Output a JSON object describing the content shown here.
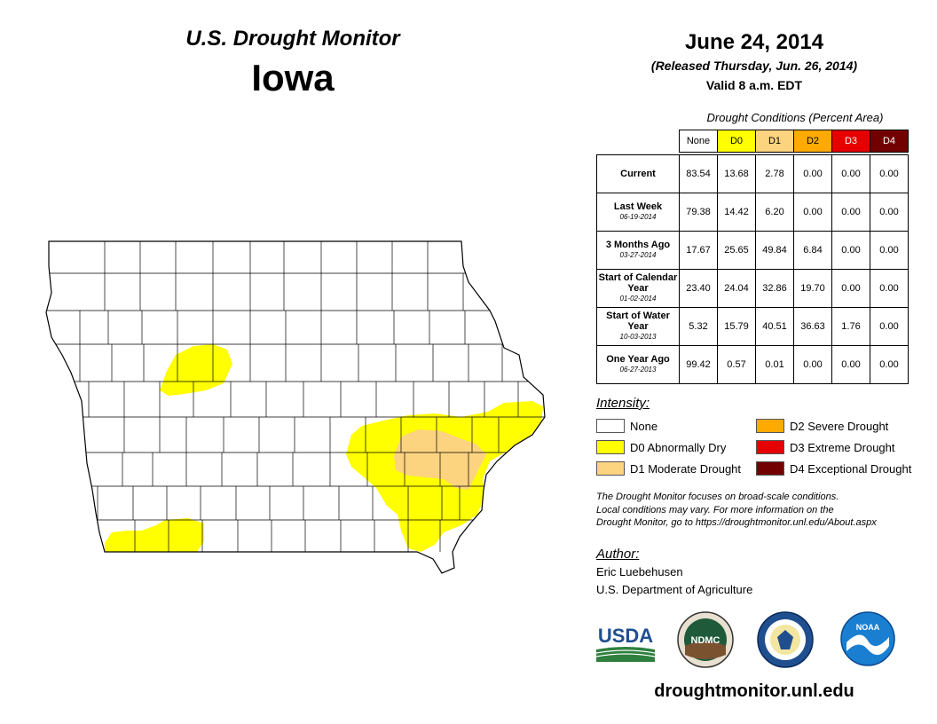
{
  "header": {
    "title": "U.S. Drought Monitor",
    "state": "Iowa",
    "date": "June 24, 2014",
    "released": "(Released Thursday, Jun. 26, 2014)",
    "valid": "Valid 8 a.m. EDT"
  },
  "table": {
    "caption": "Drought Conditions (Percent Area)",
    "columns": [
      "None",
      "D0",
      "D1",
      "D2",
      "D3",
      "D4"
    ],
    "column_colors": [
      "#ffffff",
      "#ffff00",
      "#fcd37f",
      "#ffaa00",
      "#e60000",
      "#730000"
    ],
    "rows": [
      {
        "label": "Current",
        "sub": "",
        "values": [
          "83.54",
          "13.68",
          "2.78",
          "0.00",
          "0.00",
          "0.00"
        ]
      },
      {
        "label": "Last Week",
        "sub": "06-19-2014",
        "values": [
          "79.38",
          "14.42",
          "6.20",
          "0.00",
          "0.00",
          "0.00"
        ]
      },
      {
        "label": "3 Months Ago",
        "sub": "03-27-2014",
        "values": [
          "17.67",
          "25.65",
          "49.84",
          "6.84",
          "0.00",
          "0.00"
        ]
      },
      {
        "label": "Start of Calendar Year",
        "sub": "01-02-2014",
        "values": [
          "23.40",
          "24.04",
          "32.86",
          "19.70",
          "0.00",
          "0.00"
        ]
      },
      {
        "label": "Start of Water Year",
        "sub": "10-03-2013",
        "values": [
          "5.32",
          "15.79",
          "40.51",
          "36.63",
          "1.76",
          "0.00"
        ]
      },
      {
        "label": "One Year Ago",
        "sub": "06-27-2013",
        "values": [
          "99.42",
          "0.57",
          "0.01",
          "0.00",
          "0.00",
          "0.00"
        ]
      }
    ]
  },
  "legend": {
    "title": "Intensity:",
    "items": [
      {
        "label": "None",
        "color": "#ffffff"
      },
      {
        "label": "D0 Abnormally Dry",
        "color": "#ffff00"
      },
      {
        "label": "D1 Moderate Drought",
        "color": "#fcd37f"
      },
      {
        "label": "D2 Severe Drought",
        "color": "#ffaa00"
      },
      {
        "label": "D3 Extreme Drought",
        "color": "#e60000"
      },
      {
        "label": "D4 Exceptional Drought",
        "color": "#730000"
      }
    ]
  },
  "note": {
    "line1": "The Drought Monitor focuses on broad-scale conditions.",
    "line2": "Local conditions may vary. For more information on the",
    "line3": "Drought Monitor, go to https://droughtmonitor.unl.edu/About.aspx"
  },
  "author": {
    "title": "Author:",
    "name": "Eric Luebehusen",
    "org": "U.S. Department of Agriculture"
  },
  "logos": {
    "usda": "USDA",
    "ndmc": "NDMC",
    "noaa": "NOAA"
  },
  "footer": {
    "site": "droughtmonitor.unl.edu"
  }
}
